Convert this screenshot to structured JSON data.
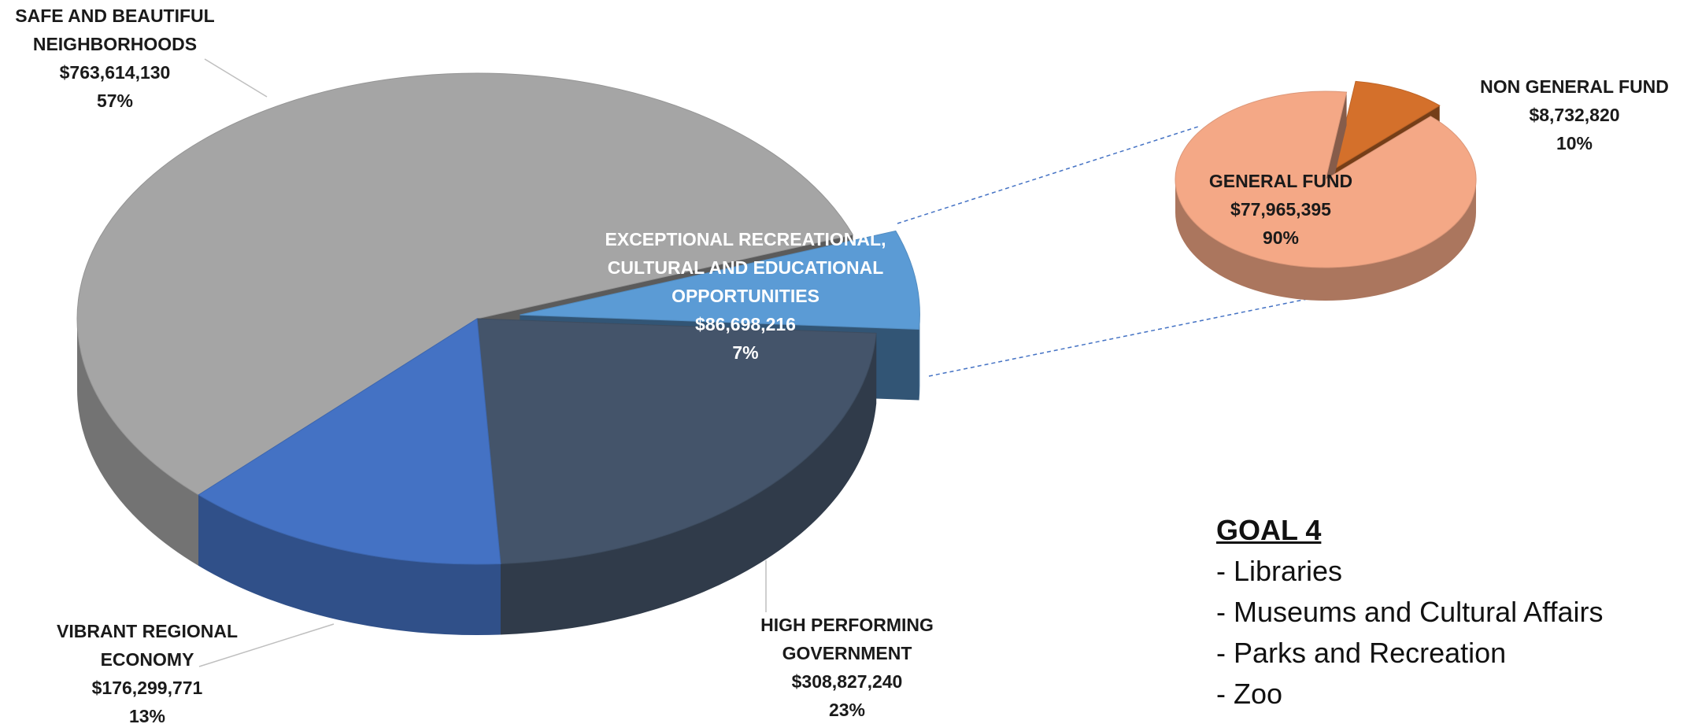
{
  "chart_data": [
    {
      "type": "pie",
      "categories": [
        "EXCEPTIONAL RECREATIONAL, CULTURAL AND EDUCATIONAL OPPORTUNITIES",
        "HIGH PERFORMING GOVERNMENT",
        "VIBRANT REGIONAL ECONOMY",
        "SAFE AND BEAUTIFUL NEIGHBORHOODS"
      ],
      "values": [
        86698216,
        308827240,
        176299771,
        763614130
      ],
      "value_labels": [
        "$86,698,216",
        "$308,827,240",
        "$176,299,771",
        "$763,614,130"
      ],
      "percents": [
        7,
        23,
        13,
        57
      ],
      "percent_labels": [
        "7%",
        "23%",
        "13%",
        "57%"
      ],
      "colors": [
        "#5b9bd5",
        "#44546a",
        "#4472c4",
        "#a5a5a5"
      ]
    },
    {
      "type": "pie",
      "categories": [
        "NON GENERAL FUND",
        "GENERAL FUND"
      ],
      "values": [
        8732820,
        77965395
      ],
      "value_labels": [
        "$8,732,820",
        "$77,965,395"
      ],
      "percents": [
        10,
        90
      ],
      "percent_labels": [
        "10%",
        "90%"
      ],
      "colors": [
        "#d4702b",
        "#f4a886"
      ]
    }
  ],
  "goal": {
    "title": "GOAL 4",
    "items": [
      "- Libraries",
      "- Museums and Cultural Affairs",
      "- Parks and Recreation",
      "- Zoo"
    ]
  }
}
